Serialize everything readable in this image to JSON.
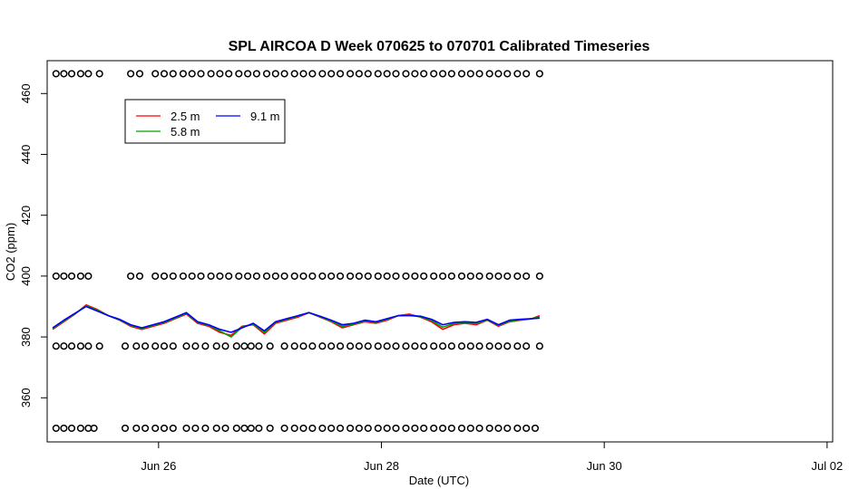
{
  "chart_data": {
    "type": "line",
    "title": "SPL AIRCOA D  Week 070625 to 070701  Calibrated Timeseries",
    "xlabel": "Date (UTC)",
    "ylabel": "CO2 (ppm)",
    "xlim": [
      25.0,
      32.05
    ],
    "ylim": [
      345.5,
      470.8
    ],
    "x_ticks": [
      {
        "value": 26,
        "label": "Jun 26"
      },
      {
        "value": 28,
        "label": "Jun 28"
      },
      {
        "value": 30,
        "label": "Jun 30"
      },
      {
        "value": 32,
        "label": "Jul 02"
      }
    ],
    "y_ticks": [
      360,
      380,
      400,
      420,
      440,
      460
    ],
    "grid": false,
    "legend": {
      "placement": "top-left",
      "entries": [
        {
          "label": "2.5 m",
          "color": "#ff0000"
        },
        {
          "label": "5.8 m",
          "color": "#00a000"
        },
        {
          "label": "9.1 m",
          "color": "#0000ff"
        }
      ]
    },
    "series": [
      {
        "name": "2.5 m",
        "color": "#ff0000",
        "x": [
          25.05,
          25.15,
          25.25,
          25.35,
          25.45,
          25.55,
          25.65,
          25.75,
          25.85,
          25.95,
          26.05,
          26.15,
          26.25,
          26.35,
          26.45,
          26.55,
          26.65,
          26.75,
          26.85,
          26.95,
          27.05,
          27.15,
          27.25,
          27.35,
          27.45,
          27.55,
          27.65,
          27.75,
          27.85,
          27.95,
          28.05,
          28.15,
          28.25,
          28.35,
          28.45,
          28.55,
          28.65,
          28.75,
          28.85,
          28.95,
          29.05,
          29.15,
          29.25,
          29.35,
          29.42
        ],
        "y": [
          382.5,
          385.0,
          387.5,
          390.5,
          389.0,
          387.0,
          385.5,
          383.5,
          382.5,
          383.5,
          384.5,
          386.0,
          387.5,
          384.5,
          383.5,
          381.5,
          380.5,
          383.5,
          384.0,
          381.0,
          384.5,
          385.5,
          386.5,
          388.0,
          386.5,
          385.0,
          383.0,
          384.0,
          385.0,
          384.5,
          385.5,
          387.0,
          387.5,
          386.5,
          385.0,
          382.5,
          384.0,
          384.5,
          384.0,
          385.5,
          383.5,
          385.0,
          385.5,
          386.0,
          387.0
        ]
      },
      {
        "name": "5.8 m",
        "color": "#00a000",
        "x": [
          25.05,
          25.15,
          25.25,
          25.35,
          25.45,
          25.55,
          25.65,
          25.75,
          25.85,
          25.95,
          26.05,
          26.15,
          26.25,
          26.35,
          26.45,
          26.55,
          26.65,
          26.75,
          26.85,
          26.95,
          27.05,
          27.15,
          27.25,
          27.35,
          27.45,
          27.55,
          27.65,
          27.75,
          27.85,
          27.95,
          28.05,
          28.15,
          28.25,
          28.35,
          28.45,
          28.55,
          28.65,
          28.75,
          28.85,
          28.95,
          29.05,
          29.15,
          29.25,
          29.35,
          29.42
        ],
        "y": [
          382.8,
          385.2,
          387.6,
          390.2,
          388.8,
          387.0,
          385.6,
          383.8,
          382.8,
          383.8,
          384.8,
          386.2,
          387.8,
          384.8,
          383.8,
          382.0,
          380.0,
          383.2,
          384.2,
          381.5,
          384.8,
          385.8,
          386.8,
          388.0,
          386.6,
          385.2,
          383.5,
          384.2,
          385.2,
          384.8,
          385.8,
          387.0,
          387.2,
          386.6,
          385.4,
          383.2,
          384.4,
          384.8,
          384.4,
          385.6,
          383.8,
          385.2,
          385.6,
          386.0,
          386.6
        ]
      },
      {
        "name": "9.1 m",
        "color": "#0000ff",
        "x": [
          25.05,
          25.15,
          25.25,
          25.35,
          25.45,
          25.55,
          25.65,
          25.75,
          25.85,
          25.95,
          26.05,
          26.15,
          26.25,
          26.35,
          26.45,
          26.55,
          26.65,
          26.75,
          26.85,
          26.95,
          27.05,
          27.15,
          27.25,
          27.35,
          27.45,
          27.55,
          27.65,
          27.75,
          27.85,
          27.95,
          28.05,
          28.15,
          28.25,
          28.35,
          28.45,
          28.55,
          28.65,
          28.75,
          28.85,
          28.95,
          29.05,
          29.15,
          29.25,
          29.35,
          29.42
        ],
        "y": [
          383.0,
          385.5,
          387.8,
          390.0,
          388.5,
          387.0,
          385.8,
          384.0,
          383.0,
          384.0,
          385.0,
          386.5,
          388.0,
          385.0,
          384.0,
          382.5,
          381.5,
          383.0,
          384.5,
          382.0,
          385.0,
          386.0,
          387.0,
          388.0,
          386.8,
          385.5,
          384.0,
          384.5,
          385.5,
          385.0,
          386.0,
          387.0,
          387.0,
          386.8,
          385.8,
          384.0,
          384.8,
          385.0,
          384.8,
          385.8,
          384.0,
          385.5,
          385.8,
          386.0,
          386.2
        ]
      }
    ],
    "marker_rows": [
      {
        "y": 466.5,
        "x": [
          25.08,
          25.15,
          25.22,
          25.3,
          25.37,
          25.47,
          25.75,
          25.83,
          25.97,
          26.05,
          26.13,
          26.22,
          26.3,
          26.38,
          26.47,
          26.55,
          26.63,
          26.72,
          26.8,
          26.88,
          26.97,
          27.05,
          27.13,
          27.22,
          27.3,
          27.38,
          27.47,
          27.55,
          27.63,
          27.72,
          27.8,
          27.88,
          27.97,
          28.05,
          28.13,
          28.22,
          28.3,
          28.38,
          28.47,
          28.55,
          28.63,
          28.72,
          28.8,
          28.88,
          28.97,
          29.05,
          29.13,
          29.22,
          29.3,
          29.42
        ]
      },
      {
        "y": 400.0,
        "x": [
          25.08,
          25.15,
          25.22,
          25.3,
          25.37,
          25.75,
          25.83,
          25.97,
          26.05,
          26.13,
          26.22,
          26.3,
          26.38,
          26.47,
          26.55,
          26.63,
          26.72,
          26.8,
          26.88,
          26.97,
          27.05,
          27.13,
          27.22,
          27.3,
          27.38,
          27.47,
          27.55,
          27.63,
          27.72,
          27.8,
          27.88,
          27.97,
          28.05,
          28.13,
          28.22,
          28.3,
          28.38,
          28.47,
          28.55,
          28.63,
          28.72,
          28.8,
          28.88,
          28.97,
          29.05,
          29.13,
          29.22,
          29.3,
          29.42
        ]
      },
      {
        "y": 377.0,
        "x": [
          25.08,
          25.15,
          25.22,
          25.3,
          25.37,
          25.47,
          25.7,
          25.8,
          25.88,
          25.97,
          26.05,
          26.13,
          26.25,
          26.33,
          26.42,
          26.52,
          26.6,
          26.7,
          26.77,
          26.83,
          26.9,
          27.0,
          27.13,
          27.22,
          27.3,
          27.38,
          27.47,
          27.55,
          27.63,
          27.72,
          27.8,
          27.88,
          27.97,
          28.05,
          28.13,
          28.22,
          28.3,
          28.38,
          28.47,
          28.55,
          28.63,
          28.72,
          28.8,
          28.88,
          28.97,
          29.05,
          29.13,
          29.22,
          29.3,
          29.42
        ]
      },
      {
        "y": 350.0,
        "x": [
          25.08,
          25.15,
          25.22,
          25.3,
          25.37,
          25.42,
          25.7,
          25.8,
          25.88,
          25.97,
          26.05,
          26.13,
          26.25,
          26.33,
          26.42,
          26.52,
          26.6,
          26.7,
          26.77,
          26.83,
          26.9,
          27.0,
          27.13,
          27.22,
          27.3,
          27.38,
          27.47,
          27.55,
          27.63,
          27.72,
          27.8,
          27.88,
          27.97,
          28.05,
          28.13,
          28.22,
          28.3,
          28.38,
          28.47,
          28.55,
          28.63,
          28.72,
          28.8,
          28.88,
          28.97,
          29.05,
          29.13,
          29.22,
          29.3,
          29.38
        ]
      }
    ]
  }
}
